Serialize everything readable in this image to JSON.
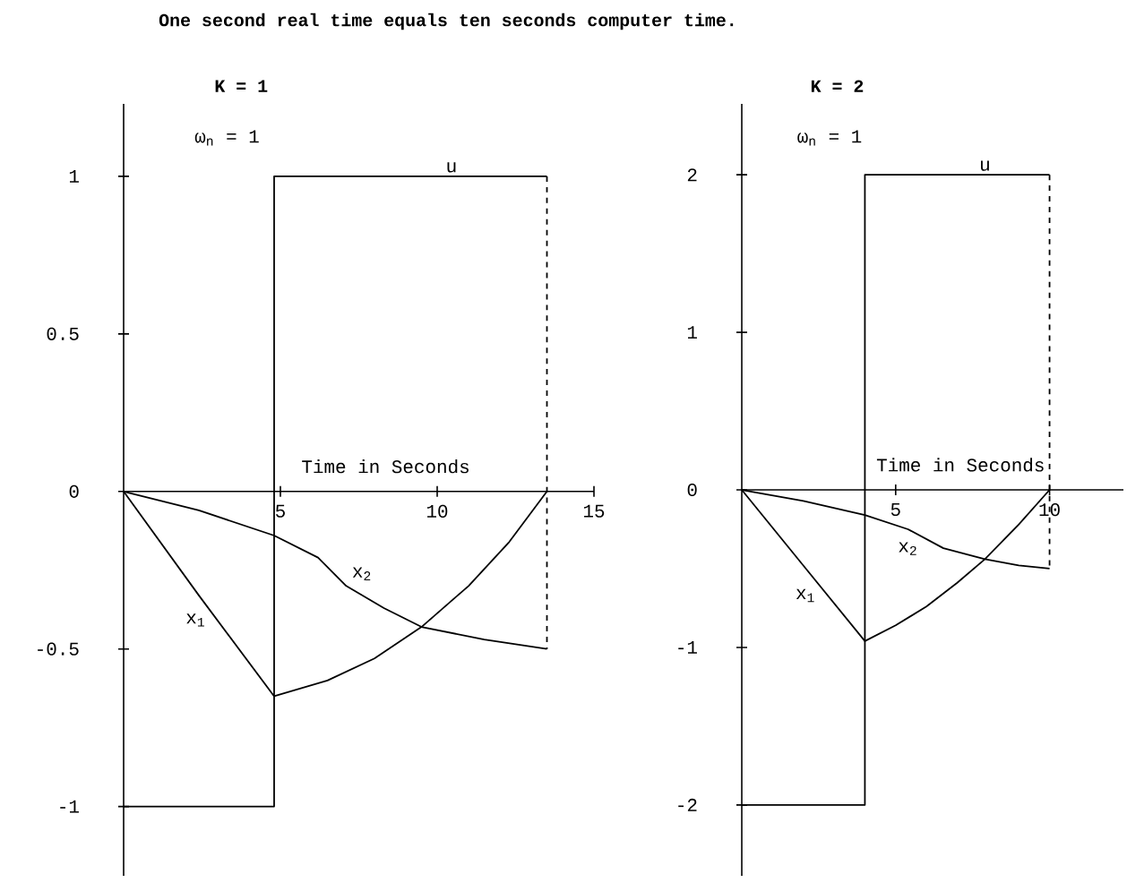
{
  "chart_data": [
    {
      "type": "line",
      "title": "K = 1",
      "subtitle": "ω$_{n}$ = 1",
      "xlabel": "Time in Seconds",
      "annotations": [
        "One second real time equals ten seconds computer time."
      ],
      "xlim": [
        0,
        15
      ],
      "ylim": [
        -1.22,
        1.23
      ],
      "xticks": [
        5,
        10,
        15
      ],
      "yticks": [
        -1,
        -0.5,
        0,
        0.5,
        1
      ],
      "marker": "none",
      "series": [
        {
          "name": "u",
          "type": "step",
          "color": "#000000",
          "x": [
            0,
            4.8,
            13.5
          ],
          "values": [
            -1,
            1,
            1
          ]
        },
        {
          "name": "x$_{1}$",
          "color": "#000000",
          "x": [
            0,
            2.4,
            4.8,
            6.5,
            8,
            9.5,
            11,
            12.3,
            13.5
          ],
          "values": [
            0,
            -0.33,
            -0.65,
            -0.6,
            -0.53,
            -0.43,
            -0.3,
            -0.16,
            0
          ]
        },
        {
          "name": "x$_{2}$",
          "color": "#000000",
          "x": [
            0,
            2.4,
            4.8,
            6.2,
            7.1,
            8.3,
            9.5,
            11.5,
            13.5
          ],
          "values": [
            0,
            -0.06,
            -0.14,
            -0.21,
            -0.3,
            -0.37,
            -0.43,
            -0.47,
            -0.5
          ]
        },
        {
          "color": "#000000",
          "line_style": "dashed",
          "x": [
            13.5,
            13.5
          ],
          "values": [
            1,
            -0.5
          ]
        }
      ]
    },
    {
      "type": "line",
      "title": "K = 2",
      "subtitle": "ω$_{n}$ = 1",
      "xlabel": "Time in Seconds",
      "xlim": [
        0,
        12.4
      ],
      "ylim": [
        -2.45,
        2.45
      ],
      "xticks": [
        5,
        10
      ],
      "yticks": [
        -2,
        -1,
        0,
        1,
        2
      ],
      "marker": "none",
      "series": [
        {
          "name": "u",
          "type": "step",
          "color": "#000000",
          "x": [
            0,
            4,
            10
          ],
          "values": [
            -2,
            2,
            2
          ]
        },
        {
          "name": "x$_{1}$",
          "color": "#000000",
          "x": [
            0,
            2,
            4,
            5,
            6,
            7,
            7.9,
            9,
            10
          ],
          "values": [
            0,
            -0.48,
            -0.96,
            -0.86,
            -0.74,
            -0.59,
            -0.44,
            -0.22,
            0
          ]
        },
        {
          "name": "x$_{2}$",
          "color": "#000000",
          "x": [
            0,
            2,
            4,
            5.4,
            6.55,
            7.9,
            9,
            10
          ],
          "values": [
            0,
            -0.07,
            -0.16,
            -0.25,
            -0.37,
            -0.44,
            -0.48,
            -0.5
          ]
        },
        {
          "color": "#000000",
          "line_style": "dashed",
          "x": [
            10,
            10
          ],
          "values": [
            2,
            -0.5
          ]
        }
      ]
    }
  ]
}
